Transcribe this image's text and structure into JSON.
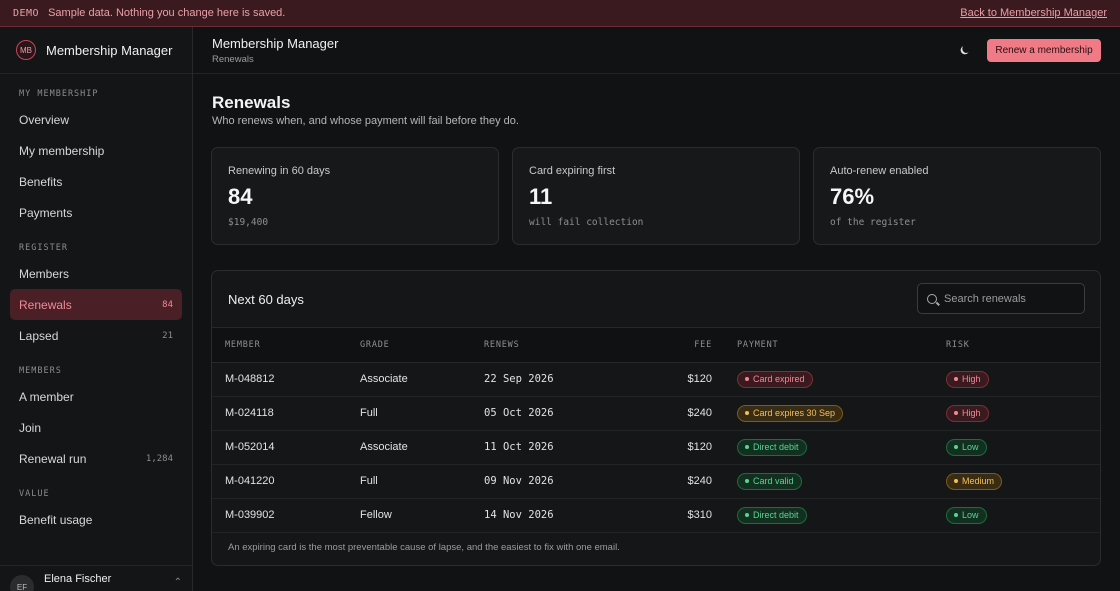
{
  "banner": {
    "tag": "DEMO",
    "message": "Sample data. Nothing you change here is saved.",
    "back_link": "Back to Membership Manager"
  },
  "brand": {
    "initials": "MB",
    "name": "Membership Manager"
  },
  "sidebar": {
    "sections": [
      {
        "title": "MY MEMBERSHIP",
        "items": [
          {
            "label": "Overview",
            "count": ""
          },
          {
            "label": "My membership",
            "count": ""
          },
          {
            "label": "Benefits",
            "count": ""
          },
          {
            "label": "Payments",
            "count": ""
          }
        ]
      },
      {
        "title": "REGISTER",
        "items": [
          {
            "label": "Members",
            "count": ""
          },
          {
            "label": "Renewals",
            "count": "84",
            "active": true
          },
          {
            "label": "Lapsed",
            "count": "21"
          }
        ]
      },
      {
        "title": "MEMBERS",
        "items": [
          {
            "label": "A member",
            "count": ""
          },
          {
            "label": "Join",
            "count": ""
          },
          {
            "label": "Renewal run",
            "count": "1,284"
          }
        ]
      },
      {
        "title": "VALUE",
        "items": [
          {
            "label": "Benefit usage",
            "count": ""
          }
        ]
      }
    ],
    "user": {
      "initials": "EF",
      "name": "Elena Fischer"
    }
  },
  "topbar": {
    "title": "Membership Manager",
    "breadcrumb": "Renewals",
    "theme_icon": "moon-icon",
    "primary_button": "Renew a membership"
  },
  "page": {
    "title": "Renewals",
    "subtitle": "Who renews when, and whose payment will fail before they do."
  },
  "stats": [
    {
      "label": "Renewing in 60 days",
      "value": "84",
      "sub": "$19,400"
    },
    {
      "label": "Card expiring first",
      "value": "11",
      "sub": "will fail collection"
    },
    {
      "label": "Auto-renew enabled",
      "value": "76%",
      "sub": "of the register"
    }
  ],
  "renewals_table": {
    "title": "Next 60 days",
    "search_placeholder": "Search renewals",
    "columns": [
      "MEMBER",
      "GRADE",
      "RENEWS",
      "FEE",
      "PAYMENT",
      "RISK"
    ],
    "rows": [
      {
        "member": "M-048812",
        "grade": "Associate",
        "renews": "22 Sep 2026",
        "fee": "$120",
        "payment": "Card expired",
        "payment_tone": "red",
        "risk": "High",
        "risk_tone": "red"
      },
      {
        "member": "M-024118",
        "grade": "Full",
        "renews": "05 Oct 2026",
        "fee": "$240",
        "payment": "Card expires 30 Sep",
        "payment_tone": "amber",
        "risk": "High",
        "risk_tone": "red"
      },
      {
        "member": "M-052014",
        "grade": "Associate",
        "renews": "11 Oct 2026",
        "fee": "$120",
        "payment": "Direct debit",
        "payment_tone": "green",
        "risk": "Low",
        "risk_tone": "green"
      },
      {
        "member": "M-041220",
        "grade": "Full",
        "renews": "09 Nov 2026",
        "fee": "$240",
        "payment": "Card valid",
        "payment_tone": "green",
        "risk": "Medium",
        "risk_tone": "amber"
      },
      {
        "member": "M-039902",
        "grade": "Fellow",
        "renews": "14 Nov 2026",
        "fee": "$310",
        "payment": "Direct debit",
        "payment_tone": "green",
        "risk": "Low",
        "risk_tone": "green"
      }
    ],
    "footnote": "An expiring card is the most preventable cause of lapse, and the easiest to fix with one email."
  },
  "colors": {
    "accent": "#f07a85",
    "danger": "#f08a98",
    "warning": "#f0c060",
    "success": "#5cd394"
  }
}
